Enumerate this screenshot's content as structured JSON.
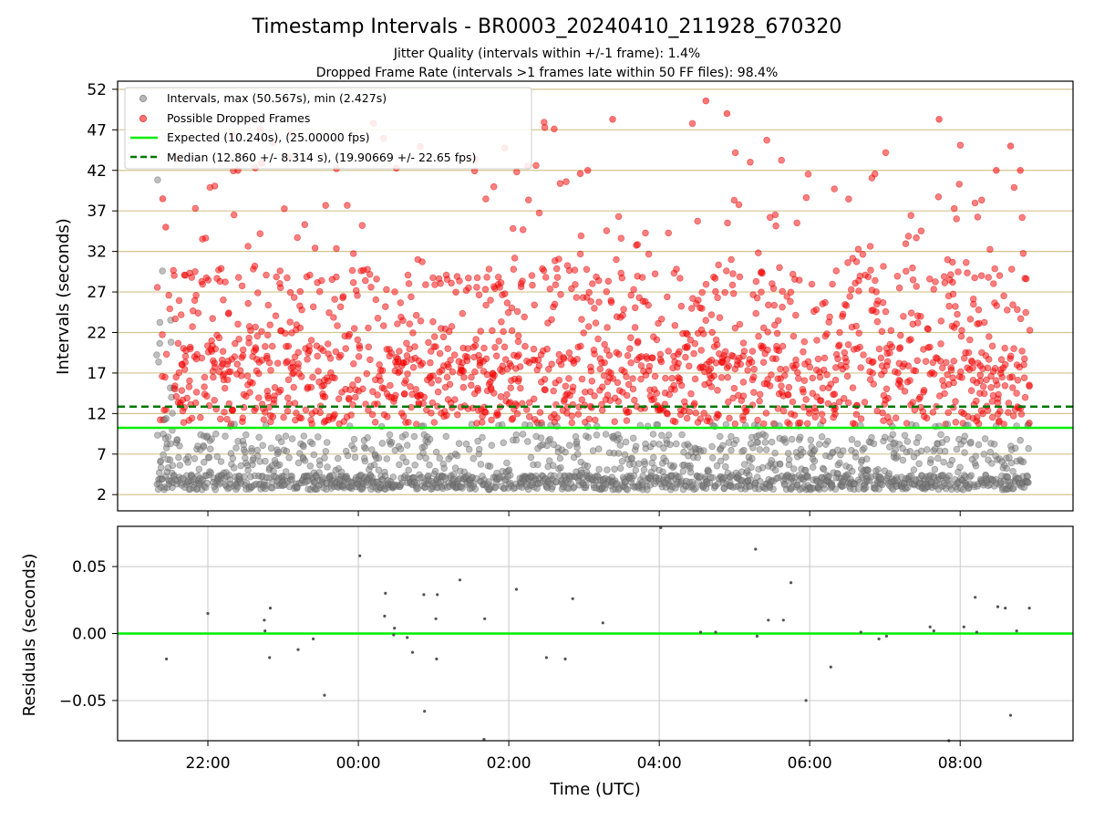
{
  "chart_data": {
    "title": "Timestamp Intervals - BR0003_20240410_211928_670320",
    "subtitle_1": "Jitter Quality (intervals within +/-1 frame): 1.4%",
    "subtitle_2": "Dropped Frame Rate (intervals >1 frames late within 50 FF files): 98.4%",
    "xlabel": "Time (UTC)",
    "x_range_hours": [
      -3.2,
      9.5
    ],
    "x_ticks": [
      {
        "label": "22:00",
        "hours": -2
      },
      {
        "label": "00:00",
        "hours": 0
      },
      {
        "label": "02:00",
        "hours": 2
      },
      {
        "label": "04:00",
        "hours": 4
      },
      {
        "label": "06:00",
        "hours": 6
      },
      {
        "label": "08:00",
        "hours": 8
      }
    ],
    "top": {
      "type": "scatter",
      "ylabel": "Intervals (seconds)",
      "ylim": [
        0,
        53
      ],
      "y_ticks": [
        2,
        7,
        12,
        17,
        22,
        27,
        32,
        37,
        42,
        47,
        52
      ],
      "grid": "horizontal",
      "legend_position": "top-left",
      "legend": [
        "Intervals, max (50.567s), min (2.427s)",
        "Possible Dropped Frames",
        "Expected (10.240s), (25.00000 fps)",
        "Median (12.860 +/- 8.314 s), (19.90669 +/- 22.65 fps)"
      ],
      "expected_interval": 10.24,
      "median_interval": 12.86,
      "data_start_hours": -2.68,
      "data_end_hours": 8.93,
      "max_interval": 50.567,
      "min_interval": 2.427,
      "series": [
        {
          "name": "Intervals",
          "color": "#808080"
        },
        {
          "name": "Possible Dropped Frames",
          "color": "#ff0000"
        },
        {
          "name": "Expected",
          "color": "#00ee00"
        },
        {
          "name": "Median",
          "color": "#007700"
        }
      ]
    },
    "bottom": {
      "type": "scatter",
      "ylabel": "Residuals (seconds)",
      "ylim": [
        -0.08,
        0.08
      ],
      "y_ticks": [
        {
          "label": "0.05",
          "value": 0.05
        },
        {
          "label": "0.00",
          "value": 0
        },
        {
          "label": "−0.05",
          "value": -0.05
        }
      ],
      "zero_line": 0,
      "points": [
        [
          -2.55,
          -0.019
        ],
        [
          -2.0,
          0.015
        ],
        [
          -1.25,
          0.01
        ],
        [
          -1.24,
          0.002
        ],
        [
          -1.18,
          -0.018
        ],
        [
          -1.17,
          0.019
        ],
        [
          -0.8,
          -0.012
        ],
        [
          -0.6,
          -0.004
        ],
        [
          -0.45,
          -0.046
        ],
        [
          0.02,
          0.058
        ],
        [
          0.35,
          0.013
        ],
        [
          0.36,
          0.03
        ],
        [
          0.47,
          -0.001
        ],
        [
          0.48,
          0.004
        ],
        [
          0.65,
          -0.003
        ],
        [
          0.72,
          -0.014
        ],
        [
          0.87,
          0.029
        ],
        [
          0.88,
          -0.058
        ],
        [
          1.03,
          0.011
        ],
        [
          1.05,
          0.029
        ],
        [
          1.04,
          -0.019
        ],
        [
          1.35,
          0.04
        ],
        [
          1.67,
          -0.079
        ],
        [
          1.68,
          0.011
        ],
        [
          2.1,
          0.033
        ],
        [
          2.5,
          -0.018
        ],
        [
          2.75,
          -0.019
        ],
        [
          2.85,
          0.026
        ],
        [
          3.25,
          0.008
        ],
        [
          4.02,
          0.079
        ],
        [
          4.55,
          0.001
        ],
        [
          4.75,
          0.001
        ],
        [
          5.28,
          0.063
        ],
        [
          5.3,
          -0.002
        ],
        [
          5.45,
          0.01
        ],
        [
          5.65,
          0.01
        ],
        [
          5.75,
          0.038
        ],
        [
          5.95,
          -0.05
        ],
        [
          6.28,
          -0.025
        ],
        [
          6.68,
          0.001
        ],
        [
          6.92,
          -0.004
        ],
        [
          7.02,
          -0.002
        ],
        [
          7.6,
          0.005
        ],
        [
          7.65,
          0.002
        ],
        [
          7.85,
          -0.08
        ],
        [
          8.05,
          0.005
        ],
        [
          8.2,
          0.027
        ],
        [
          8.22,
          0.001
        ],
        [
          8.5,
          0.02
        ],
        [
          8.6,
          0.019
        ],
        [
          8.67,
          -0.061
        ],
        [
          8.75,
          0.002
        ],
        [
          8.92,
          0.019
        ]
      ]
    }
  }
}
